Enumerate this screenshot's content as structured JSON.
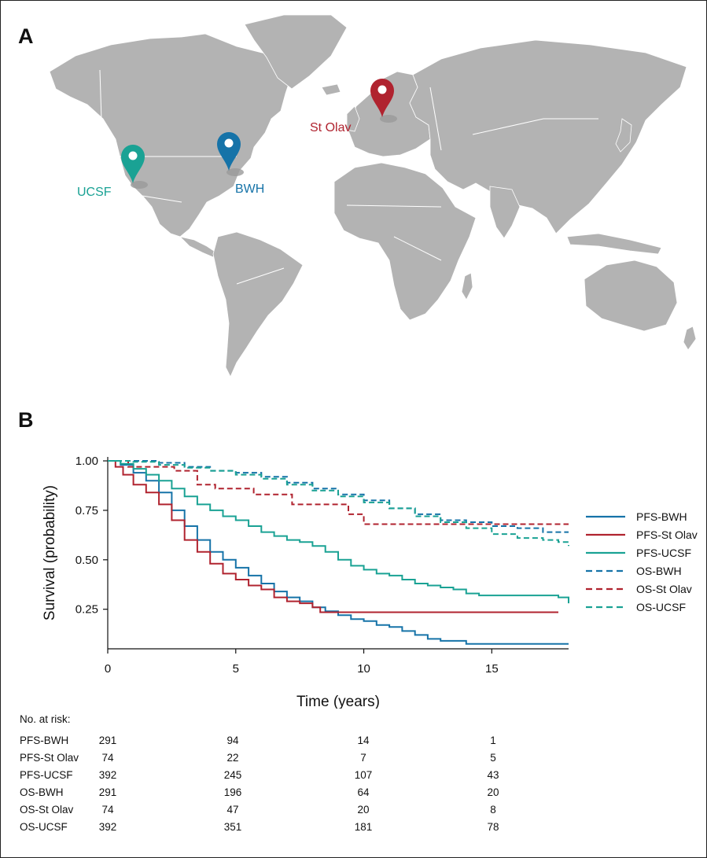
{
  "panels": {
    "a": "A",
    "b": "B"
  },
  "map": {
    "land_color": "#b3b3b3",
    "border_color": "#ffffff",
    "sites": [
      {
        "name": "UCSF",
        "label": "UCSF",
        "color": "#1aa294",
        "icon": "map-pin-icon"
      },
      {
        "name": "BWH",
        "label": "BWH",
        "color": "#1673a8",
        "icon": "map-pin-icon"
      },
      {
        "name": "St Olav",
        "label": "St Olav",
        "color": "#b0232f",
        "icon": "map-pin-icon"
      }
    ]
  },
  "chart_data": {
    "type": "line",
    "xlabel": "Time (years)",
    "ylabel": "Survival (probability)",
    "xlim": [
      0,
      18
    ],
    "ylim": [
      0.05,
      1.02
    ],
    "xticks": [
      0,
      5,
      10,
      15
    ],
    "yticks": [
      1.0,
      0.75,
      0.5,
      0.25
    ],
    "ytick_labels": [
      "1.00",
      "0.75",
      "0.50",
      "0.25"
    ],
    "grid": false,
    "legend_position": "right",
    "series": [
      {
        "name": "PFS-BWH",
        "color": "#1673a8",
        "dash": "solid",
        "step": true,
        "points": [
          [
            0,
            1.0
          ],
          [
            0.5,
            0.98
          ],
          [
            1,
            0.94
          ],
          [
            1.5,
            0.9
          ],
          [
            2,
            0.84
          ],
          [
            2.5,
            0.75
          ],
          [
            3,
            0.67
          ],
          [
            3.5,
            0.6
          ],
          [
            4,
            0.54
          ],
          [
            4.5,
            0.5
          ],
          [
            5,
            0.46
          ],
          [
            5.5,
            0.42
          ],
          [
            6,
            0.38
          ],
          [
            6.5,
            0.34
          ],
          [
            7,
            0.31
          ],
          [
            7.5,
            0.29
          ],
          [
            8,
            0.26
          ],
          [
            8.5,
            0.24
          ],
          [
            9,
            0.22
          ],
          [
            9.5,
            0.2
          ],
          [
            10,
            0.19
          ],
          [
            10.5,
            0.17
          ],
          [
            11,
            0.16
          ],
          [
            11.5,
            0.14
          ],
          [
            12,
            0.12
          ],
          [
            12.5,
            0.1
          ],
          [
            13,
            0.09
          ],
          [
            14,
            0.075
          ],
          [
            15,
            0.075
          ],
          [
            16,
            0.075
          ],
          [
            17,
            0.075
          ],
          [
            18,
            0.075
          ]
        ]
      },
      {
        "name": "PFS-St Olav",
        "color": "#b0232f",
        "dash": "solid",
        "step": true,
        "points": [
          [
            0,
            1.0
          ],
          [
            0.3,
            0.97
          ],
          [
            0.6,
            0.93
          ],
          [
            1,
            0.88
          ],
          [
            1.5,
            0.84
          ],
          [
            2,
            0.78
          ],
          [
            2.5,
            0.7
          ],
          [
            3,
            0.6
          ],
          [
            3.5,
            0.54
          ],
          [
            4,
            0.48
          ],
          [
            4.5,
            0.43
          ],
          [
            5,
            0.4
          ],
          [
            5.5,
            0.37
          ],
          [
            6,
            0.35
          ],
          [
            6.5,
            0.31
          ],
          [
            7,
            0.29
          ],
          [
            7.5,
            0.28
          ],
          [
            8,
            0.26
          ],
          [
            8.3,
            0.235
          ],
          [
            9,
            0.235
          ],
          [
            10,
            0.235
          ],
          [
            12,
            0.235
          ],
          [
            14,
            0.235
          ],
          [
            16,
            0.235
          ],
          [
            17.6,
            0.235
          ]
        ]
      },
      {
        "name": "PFS-UCSF",
        "color": "#1aa294",
        "dash": "solid",
        "step": true,
        "points": [
          [
            0,
            1.0
          ],
          [
            0.5,
            0.985
          ],
          [
            1,
            0.96
          ],
          [
            1.5,
            0.93
          ],
          [
            2,
            0.9
          ],
          [
            2.5,
            0.86
          ],
          [
            3,
            0.82
          ],
          [
            3.5,
            0.78
          ],
          [
            4,
            0.75
          ],
          [
            4.5,
            0.72
          ],
          [
            5,
            0.7
          ],
          [
            5.5,
            0.67
          ],
          [
            6,
            0.64
          ],
          [
            6.5,
            0.62
          ],
          [
            7,
            0.6
          ],
          [
            7.5,
            0.59
          ],
          [
            8,
            0.57
          ],
          [
            8.5,
            0.54
          ],
          [
            9,
            0.5
          ],
          [
            9.5,
            0.47
          ],
          [
            10,
            0.45
          ],
          [
            10.5,
            0.43
          ],
          [
            11,
            0.42
          ],
          [
            11.5,
            0.4
          ],
          [
            12,
            0.38
          ],
          [
            12.5,
            0.37
          ],
          [
            13,
            0.36
          ],
          [
            13.5,
            0.35
          ],
          [
            14,
            0.33
          ],
          [
            14.5,
            0.32
          ],
          [
            15,
            0.32
          ],
          [
            16,
            0.32
          ],
          [
            17,
            0.32
          ],
          [
            17.6,
            0.31
          ],
          [
            18,
            0.28
          ]
        ]
      },
      {
        "name": "OS-BWH",
        "color": "#1673a8",
        "dash": "dashed",
        "step": true,
        "points": [
          [
            0,
            1.0
          ],
          [
            1,
            1.0
          ],
          [
            2,
            0.99
          ],
          [
            3,
            0.97
          ],
          [
            4,
            0.95
          ],
          [
            5,
            0.94
          ],
          [
            6,
            0.92
          ],
          [
            7,
            0.89
          ],
          [
            8,
            0.86
          ],
          [
            9,
            0.83
          ],
          [
            10,
            0.8
          ],
          [
            11,
            0.76
          ],
          [
            12,
            0.73
          ],
          [
            13,
            0.7
          ],
          [
            14,
            0.69
          ],
          [
            15,
            0.67
          ],
          [
            16,
            0.66
          ],
          [
            17,
            0.64
          ],
          [
            18,
            0.64
          ]
        ]
      },
      {
        "name": "OS-St Olav",
        "color": "#b0232f",
        "dash": "dashed",
        "step": true,
        "points": [
          [
            0,
            1.0
          ],
          [
            0.8,
            0.97
          ],
          [
            2.5,
            0.97
          ],
          [
            2.6,
            0.95
          ],
          [
            3.3,
            0.95
          ],
          [
            3.5,
            0.88
          ],
          [
            4.2,
            0.86
          ],
          [
            5.5,
            0.86
          ],
          [
            5.7,
            0.83
          ],
          [
            7,
            0.83
          ],
          [
            7.2,
            0.78
          ],
          [
            9.3,
            0.78
          ],
          [
            9.4,
            0.73
          ],
          [
            9.9,
            0.73
          ],
          [
            10,
            0.68
          ],
          [
            12,
            0.68
          ],
          [
            14,
            0.68
          ],
          [
            16,
            0.68
          ],
          [
            18,
            0.68
          ]
        ]
      },
      {
        "name": "OS-UCSF",
        "color": "#1aa294",
        "dash": "dashed",
        "step": true,
        "points": [
          [
            0,
            1.0
          ],
          [
            1,
            0.995
          ],
          [
            2,
            0.98
          ],
          [
            3,
            0.965
          ],
          [
            4,
            0.95
          ],
          [
            5,
            0.93
          ],
          [
            6,
            0.91
          ],
          [
            7,
            0.88
          ],
          [
            8,
            0.85
          ],
          [
            9,
            0.82
          ],
          [
            10,
            0.79
          ],
          [
            11,
            0.76
          ],
          [
            12,
            0.72
          ],
          [
            13,
            0.69
          ],
          [
            14,
            0.66
          ],
          [
            15,
            0.63
          ],
          [
            16,
            0.61
          ],
          [
            17,
            0.6
          ],
          [
            17.6,
            0.59
          ],
          [
            18,
            0.57
          ]
        ]
      }
    ]
  },
  "risk_table": {
    "title": "No. at risk:",
    "rows": [
      {
        "name": "PFS-BWH",
        "values": [
          "291",
          "94",
          "14",
          "1"
        ]
      },
      {
        "name": "PFS-St Olav",
        "values": [
          "74",
          "22",
          "7",
          "5"
        ]
      },
      {
        "name": "PFS-UCSF",
        "values": [
          "392",
          "245",
          "107",
          "43"
        ]
      },
      {
        "name": "OS-BWH",
        "values": [
          "291",
          "196",
          "64",
          "20"
        ]
      },
      {
        "name": "OS-St Olav",
        "values": [
          "74",
          "47",
          "20",
          "8"
        ]
      },
      {
        "name": "OS-UCSF",
        "values": [
          "392",
          "351",
          "181",
          "78"
        ]
      }
    ]
  }
}
